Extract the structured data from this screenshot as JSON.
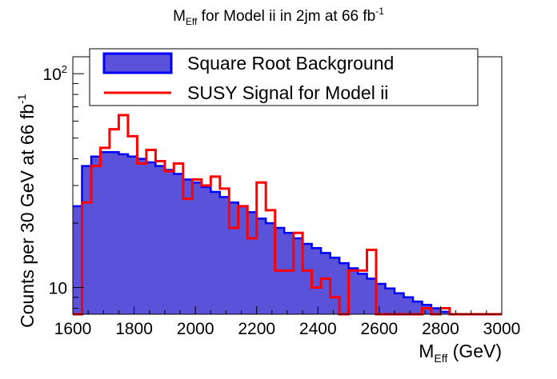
{
  "chart_data": {
    "type": "histogram",
    "title_main": "M",
    "title_main_sub": "Eff",
    "title_rest": " for Model ii in 2jm at 66 fb",
    "title_sup": "-1",
    "xlabel_main": "M",
    "xlabel_sub": "Eff",
    "xlabel_rest": " (GeV)",
    "ylabel_main": "Counts per 30 GeV at 66 fb",
    "ylabel_sup": "-1",
    "x_range": [
      1600,
      3000
    ],
    "y_scale": "log",
    "y_range": [
      7.5,
      120
    ],
    "bin_width": 30,
    "x_tick_labels": [
      "1600",
      "1800",
      "2000",
      "2200",
      "2400",
      "2600",
      "2800",
      "3000"
    ],
    "y_tick_labels": [
      {
        "base": "10",
        "sup": "",
        "value": 10
      },
      {
        "base": "10",
        "sup": "2",
        "value": 100
      }
    ],
    "legend": {
      "position": "top",
      "entries": [
        {
          "label": "Square Root Background",
          "style": "filled",
          "fill": "#5a52d9",
          "stroke": "#0000ff"
        },
        {
          "label": "SUSY Signal for Model ii",
          "style": "line",
          "stroke": "#ff0000"
        }
      ]
    },
    "series": [
      {
        "name": "Square Root Background",
        "fill": "#5a52d9",
        "stroke": "#0000ff",
        "values": [
          24,
          37,
          41,
          43,
          43,
          42,
          41,
          40,
          38.5,
          37,
          35.5,
          34,
          32,
          31,
          29.5,
          28,
          26.5,
          25,
          24,
          22.5,
          21,
          20,
          19,
          18,
          17,
          16,
          15.3,
          14.5,
          13.8,
          13,
          12.3,
          11.6,
          11,
          10.4,
          9.9,
          9.4,
          9.0,
          8.6,
          8.3,
          8.0,
          7.7,
          7.5,
          7.5,
          7.5,
          7.5,
          7.5,
          7.5
        ]
      },
      {
        "name": "SUSY Signal for Model ii",
        "stroke": "#ff0000",
        "values": [
          7.5,
          25,
          37,
          45,
          55,
          64,
          51,
          38,
          44,
          39,
          35,
          38,
          26,
          32,
          30,
          33,
          29,
          19,
          24,
          17,
          31,
          23,
          12,
          12,
          18,
          12,
          10,
          11,
          9,
          7.5,
          12,
          12,
          15,
          7.5,
          7.5,
          7.5,
          7.5,
          7.5,
          8,
          7.5,
          8,
          7.5,
          7.5,
          7.5,
          7.5,
          7.5,
          7.5
        ]
      }
    ]
  }
}
